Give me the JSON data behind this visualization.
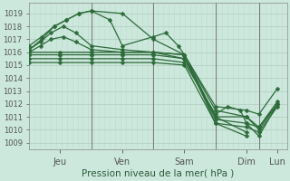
{
  "xlabel": "Pression niveau de la mer( hPa )",
  "ylim": [
    1008.5,
    1019.8
  ],
  "yticks": [
    1009,
    1010,
    1011,
    1012,
    1013,
    1014,
    1015,
    1016,
    1017,
    1018,
    1019
  ],
  "background_color": "#cce8dc",
  "grid_color_h": "#b0ccbe",
  "grid_color_v": "#c0d8cc",
  "line_color": "#2d6b3a",
  "day_tick_color": "#555555",
  "lines": [
    {
      "x": [
        0.0,
        0.18,
        0.35,
        0.55,
        0.75,
        1.0,
        1.5,
        2.0,
        2.5,
        3.0,
        3.5
      ],
      "y": [
        1016.0,
        1016.5,
        1017.0,
        1017.2,
        1016.8,
        1016.2,
        1016.0,
        1016.0,
        1015.8,
        1010.5,
        1009.5
      ]
    },
    {
      "x": [
        0.0,
        0.18,
        0.35,
        0.55,
        0.75,
        1.0,
        1.5,
        2.0,
        2.5,
        3.0,
        3.5
      ],
      "y": [
        1016.2,
        1016.8,
        1017.5,
        1018.0,
        1017.5,
        1016.5,
        1016.2,
        1016.0,
        1015.8,
        1011.0,
        1009.8
      ]
    },
    {
      "x": [
        0.0,
        0.2,
        0.4,
        0.6,
        0.8,
        1.0,
        1.5,
        2.0,
        2.5,
        3.0,
        3.5,
        3.7,
        4.0
      ],
      "y": [
        1016.2,
        1017.0,
        1018.0,
        1018.5,
        1019.0,
        1019.2,
        1019.0,
        1017.0,
        1015.8,
        1011.5,
        1011.0,
        1010.2,
        1012.2
      ]
    },
    {
      "x": [
        0.0,
        0.2,
        0.4,
        0.6,
        0.8,
        1.0,
        1.3,
        1.5,
        2.0,
        2.2,
        2.4,
        2.5,
        3.0,
        3.5,
        3.7,
        4.0
      ],
      "y": [
        1016.5,
        1017.2,
        1018.0,
        1018.5,
        1019.0,
        1019.2,
        1018.5,
        1016.5,
        1017.2,
        1017.5,
        1016.5,
        1015.8,
        1011.8,
        1011.5,
        1011.2,
        1013.2
      ]
    },
    {
      "x": [
        0.0,
        0.5,
        1.0,
        1.5,
        2.0,
        2.5,
        3.0,
        3.5,
        3.7,
        4.0
      ],
      "y": [
        1016.0,
        1016.0,
        1016.0,
        1016.0,
        1016.0,
        1015.5,
        1011.0,
        1011.0,
        1010.0,
        1012.0
      ]
    },
    {
      "x": [
        0.0,
        0.5,
        1.0,
        1.5,
        2.0,
        2.5,
        3.0,
        3.5,
        3.7,
        4.0
      ],
      "y": [
        1015.8,
        1015.8,
        1015.8,
        1015.8,
        1015.8,
        1015.5,
        1010.8,
        1010.5,
        1009.5,
        1012.0
      ]
    },
    {
      "x": [
        0.0,
        0.5,
        1.0,
        1.5,
        2.0,
        2.5,
        3.0,
        3.2,
        3.4,
        3.5,
        3.7,
        4.0
      ],
      "y": [
        1015.5,
        1015.5,
        1015.5,
        1015.5,
        1015.5,
        1015.2,
        1011.2,
        1011.8,
        1011.5,
        1010.5,
        1010.2,
        1012.0
      ]
    },
    {
      "x": [
        0.0,
        0.5,
        1.0,
        1.5,
        2.0,
        2.5,
        3.0,
        3.5,
        3.7,
        4.0
      ],
      "y": [
        1015.2,
        1015.2,
        1015.2,
        1015.2,
        1015.2,
        1015.0,
        1010.5,
        1010.2,
        1009.8,
        1011.8
      ]
    }
  ],
  "xlim": [
    0.0,
    4.15
  ],
  "day_ticks": [
    0.5,
    1.5,
    2.5,
    3.5,
    4.0
  ],
  "day_labels": [
    "Jeu",
    "Ven",
    "Sam",
    "Dim",
    "Lun"
  ],
  "day_dividers": [
    1.0,
    2.0,
    3.0,
    3.7
  ],
  "marker_size": 2.5,
  "linewidth": 0.9
}
